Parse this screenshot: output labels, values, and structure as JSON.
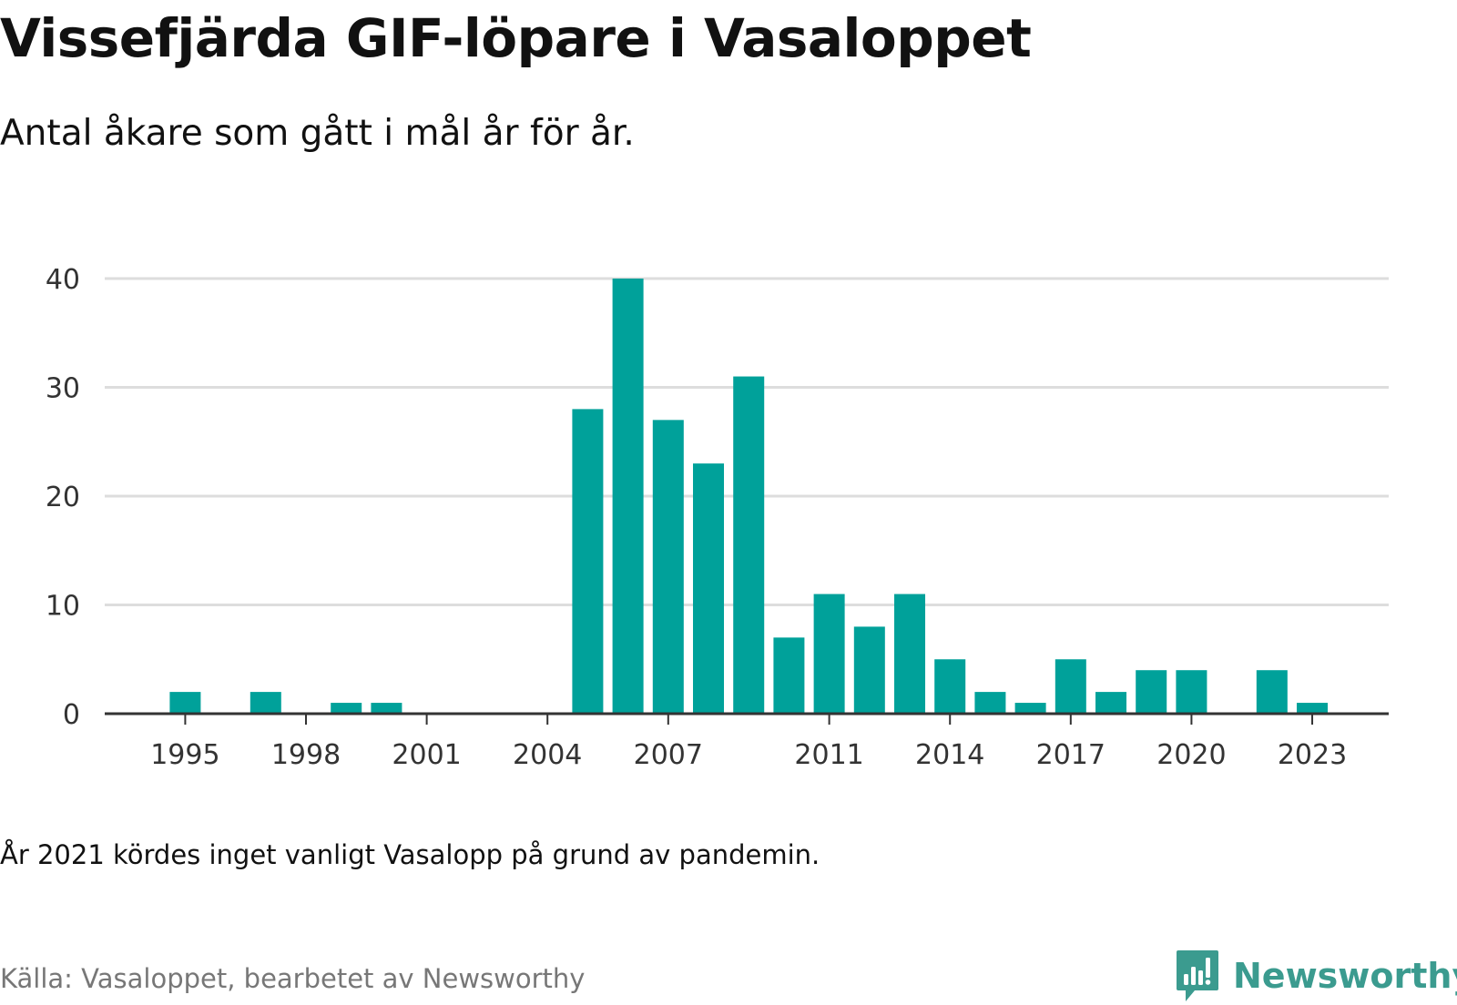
{
  "title": "Vissefjärda GIF-löpare i Vasaloppet",
  "subtitle": "Antal åkare som gått i mål år för år.",
  "footnote": "År 2021 kördes inget vanligt Vasalopp på grund av pandemin.",
  "source": "Källa: Vasaloppet, bearbetet av Newsworthy",
  "brand": {
    "name": "Newsworthy",
    "icon": "newsworthy-chart-bubble-icon",
    "color": "#3b9b8f"
  },
  "colors": {
    "bar": "#00a19a",
    "grid": "#dddddd",
    "axis": "#333333"
  },
  "chart_data": {
    "type": "bar",
    "title": "Vissefjärda GIF-löpare i Vasaloppet",
    "subtitle": "Antal åkare som gått i mål år för år.",
    "xlabel": "",
    "ylabel": "",
    "ylim": [
      0,
      42
    ],
    "yticks": [
      0,
      10,
      20,
      30,
      40
    ],
    "xlim": [
      1993,
      2024.9
    ],
    "xtick_labels": [
      "1995",
      "1998",
      "2001",
      "2004",
      "2007",
      "2011",
      "2014",
      "2017",
      "2020",
      "2023"
    ],
    "grid": "horizontal",
    "legend": "none",
    "x": [
      1995,
      1997,
      1999,
      2000,
      2005,
      2006,
      2007,
      2008,
      2009,
      2010,
      2011,
      2012,
      2013,
      2014,
      2015,
      2016,
      2017,
      2018,
      2019,
      2020,
      2022,
      2023
    ],
    "values": [
      2,
      2,
      1,
      1,
      28,
      40,
      27,
      23,
      31,
      7,
      11,
      8,
      11,
      5,
      2,
      1,
      5,
      2,
      4,
      4,
      4,
      1
    ]
  }
}
